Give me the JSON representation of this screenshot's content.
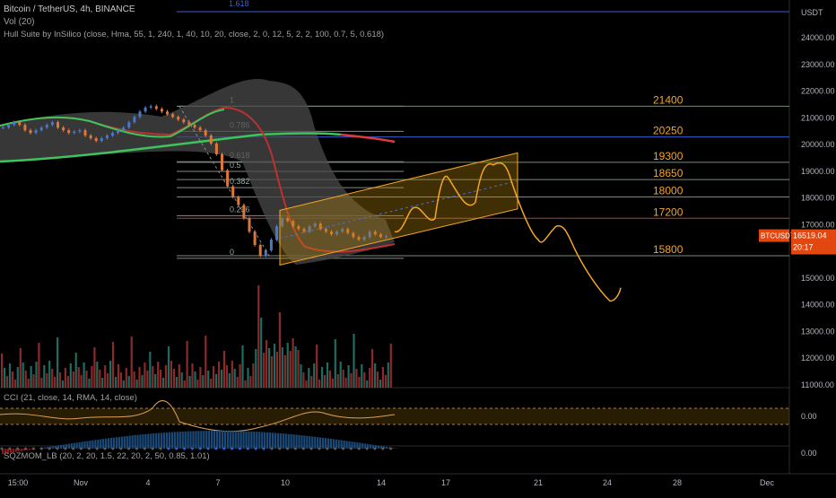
{
  "header": {
    "symbol_line": "Bitcoin / TetherUS, 4h, BINANCE",
    "vol_line": "Vol (20)",
    "hull_line": "Hull Suite by InSilico (close, Hma, 55, 1, 240, 1, 40, 10, 20, close, 2, 0, 12, 5, 2, 2, 100, 0.7, 5, 0.618)"
  },
  "price_axis": {
    "unit_label": "USDT",
    "ticks": [
      "24000.00",
      "23000.00",
      "22000.00",
      "21000.00",
      "20000.00",
      "19000.00",
      "18000.00",
      "17000.00",
      "16000.00",
      "15000.00",
      "14000.00",
      "13000.00",
      "12000.00",
      "11000.00"
    ],
    "current_symbol": "BTCUSDT",
    "current_price": "16519.04",
    "countdown": "20:17",
    "top_level_label": "1.618"
  },
  "time_axis": {
    "labels": [
      "15:00",
      "Nov",
      "4",
      "7",
      "10",
      "14",
      "17",
      "21",
      "24",
      "28",
      "Dec"
    ]
  },
  "fib_levels": [
    {
      "ratio": "1",
      "price": 21400
    },
    {
      "ratio": "0.786",
      "price": 20460
    },
    {
      "ratio": "0.618",
      "price": 19320
    },
    {
      "ratio": "0.5",
      "price": 18960
    },
    {
      "ratio": "0.382",
      "price": 18350
    },
    {
      "ratio": "0.236",
      "price": 17300
    },
    {
      "ratio": "0",
      "price": 15700
    }
  ],
  "horizontal_levels": [
    {
      "label": "21400",
      "price": 21400
    },
    {
      "label": "20250",
      "price": 20250
    },
    {
      "label": "19300",
      "price": 19300
    },
    {
      "label": "18650",
      "price": 18650
    },
    {
      "label": "18000",
      "price": 18000
    },
    {
      "label": "17200",
      "price": 17200
    },
    {
      "label": "15800",
      "price": 15800
    }
  ],
  "cci": {
    "label": "CCI (21, close, 14, RMA, 14, close)",
    "axis_value": "0.00"
  },
  "sqz": {
    "label": "SQZMOM_LB (20, 2, 20, 1.5, 22, 20, 2, 50, 0.85, 1.01)",
    "axis_value": "0.00"
  },
  "colors": {
    "background": "#000000",
    "up_candle": "#4a78c8",
    "down_candle": "#e0773a",
    "orange_drawing": "#f5a623",
    "fib_gray": "#8a8a8a",
    "level_label": "#f5a623",
    "ma_green": "#3ec45c",
    "ma_red": "#e03a3a",
    "vol_up": "#1e6b60",
    "vol_down": "#8b2a2a",
    "price_tag_bg": "#e1470f"
  }
}
